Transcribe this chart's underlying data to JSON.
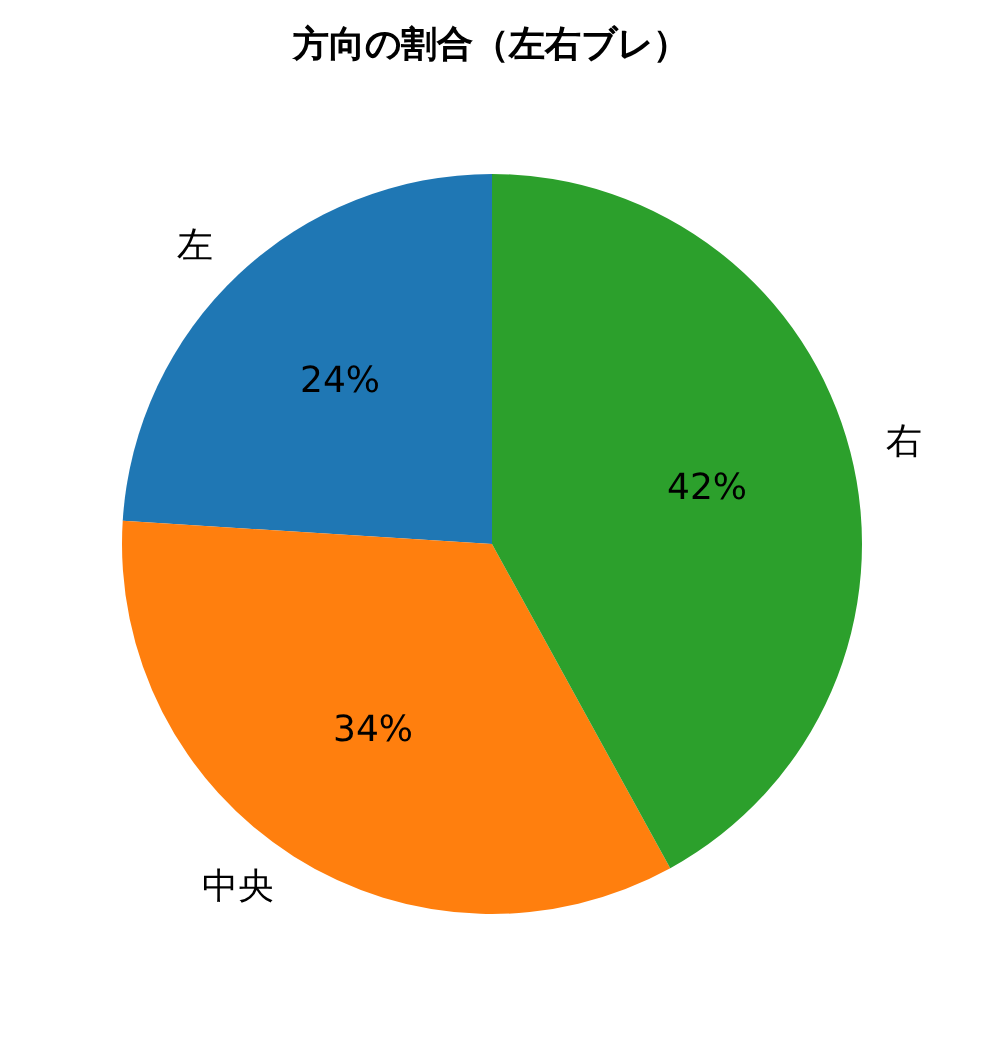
{
  "chart_data": {
    "type": "pie",
    "title": "方向の割合（左右ブレ）",
    "categories": [
      "左",
      "中央",
      "右"
    ],
    "values": [
      24,
      34,
      42
    ],
    "colors": [
      "#1f77b4",
      "#ff7f0e",
      "#2ca02c"
    ],
    "value_labels": [
      "24%",
      "34%",
      "42%"
    ]
  }
}
